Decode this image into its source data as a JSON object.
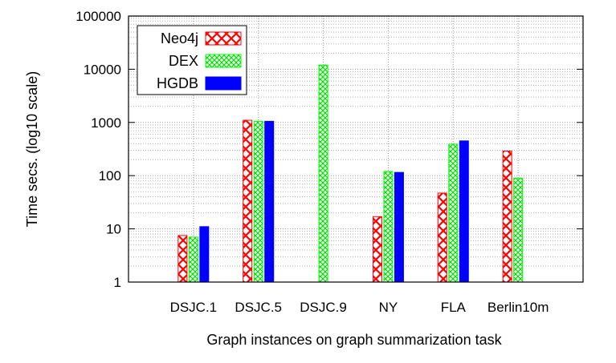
{
  "chart_data": {
    "type": "bar",
    "title": "",
    "xlabel": "Graph instances on graph summarization task",
    "ylabel": "Time secs. (log10 scale)",
    "yscale": "log10",
    "ylim": [
      1,
      100000
    ],
    "yticks": [
      1,
      10,
      100,
      1000,
      10000,
      100000
    ],
    "ytick_labels": [
      "1",
      "10",
      "100",
      "1000",
      "10000",
      "100000"
    ],
    "grid": true,
    "legend_position": "top-left",
    "categories": [
      "DSJC.1",
      "DSJC.5",
      "DSJC.9",
      "NY",
      "FLA",
      "Berlin10m"
    ],
    "series": [
      {
        "name": "Neo4j",
        "color": "#ff0000",
        "pattern": "crosshatch-x",
        "values": [
          7.5,
          1100,
          null,
          17,
          47,
          290
        ]
      },
      {
        "name": "DEX",
        "color": "#00ff00",
        "pattern": "crosshatch-fine",
        "values": [
          7,
          1050,
          12000,
          120,
          390,
          90
        ]
      },
      {
        "name": "HGDB",
        "color": "#0000ff",
        "pattern": "solid",
        "values": [
          11,
          1050,
          null,
          115,
          450,
          null
        ]
      }
    ]
  }
}
